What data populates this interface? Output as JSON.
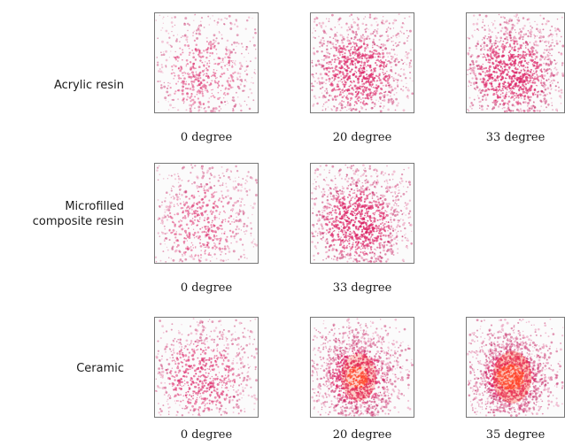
{
  "rows": [
    {
      "label_lines": [
        "Acrylic resin"
      ],
      "panels": [
        {
          "caption": "0 degree",
          "intensity": 0.35,
          "hot": 0.0
        },
        {
          "caption": "20 degree",
          "intensity": 0.75,
          "hot": 0.1
        },
        {
          "caption": "33 degree",
          "intensity": 0.85,
          "hot": 0.15
        }
      ]
    },
    {
      "label_lines": [
        "Microfilled",
        "composite resin"
      ],
      "panels": [
        {
          "caption": "0 degree",
          "intensity": 0.4,
          "hot": 0.0
        },
        {
          "caption": "33 degree",
          "intensity": 0.85,
          "hot": 0.15
        }
      ]
    },
    {
      "label_lines": [
        "Ceramic"
      ],
      "panels": [
        {
          "caption": "0 degree",
          "intensity": 0.55,
          "hot": 0.0
        },
        {
          "caption": "20 degree",
          "intensity": 0.9,
          "hot": 0.7
        },
        {
          "caption": "35 degree",
          "intensity": 0.95,
          "hot": 0.95
        }
      ]
    }
  ]
}
